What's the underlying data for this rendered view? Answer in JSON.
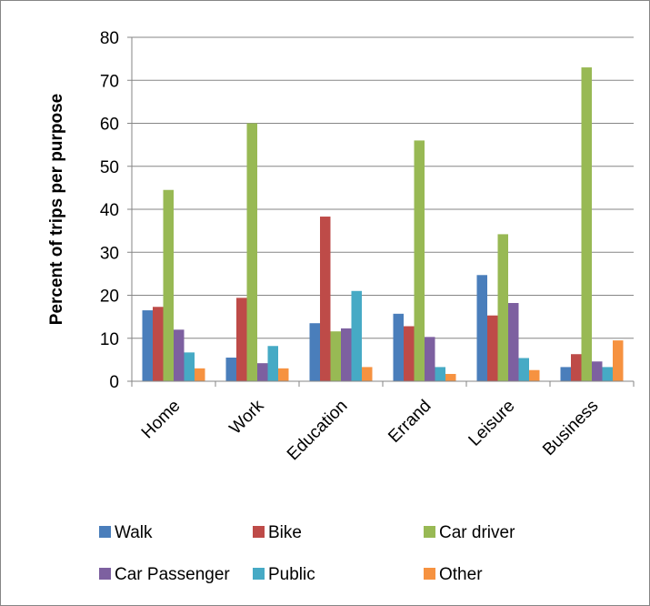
{
  "chart_data": {
    "type": "bar",
    "title": "",
    "xlabel": "",
    "ylabel": "Percent of trips per purpose",
    "ylim": [
      0,
      80
    ],
    "yticks": [
      0,
      10,
      20,
      30,
      40,
      50,
      60,
      70,
      80
    ],
    "grid": true,
    "legend_position": "bottom",
    "categories": [
      "Home",
      "Work",
      "Education",
      "Errand",
      "Leisure",
      "Business"
    ],
    "series": [
      {
        "name": "Walk",
        "color": "#4a7ebb",
        "values": [
          16.5,
          5.5,
          13.5,
          15.7,
          24.7,
          3.3
        ]
      },
      {
        "name": "Bike",
        "color": "#be4b48",
        "values": [
          17.3,
          19.4,
          38.3,
          12.8,
          15.3,
          6.3
        ]
      },
      {
        "name": "Car driver",
        "color": "#98b954",
        "values": [
          44.5,
          60.0,
          11.6,
          56.0,
          34.2,
          73.0
        ]
      },
      {
        "name": "Car Passenger",
        "color": "#7d60a0",
        "values": [
          12.0,
          4.2,
          12.3,
          10.3,
          18.2,
          4.6
        ]
      },
      {
        "name": "Public",
        "color": "#46aac5",
        "values": [
          6.7,
          8.2,
          21.0,
          3.3,
          5.4,
          3.3
        ]
      },
      {
        "name": "Other",
        "color": "#f69240",
        "values": [
          3.0,
          3.0,
          3.3,
          1.7,
          2.6,
          9.5
        ]
      }
    ]
  }
}
